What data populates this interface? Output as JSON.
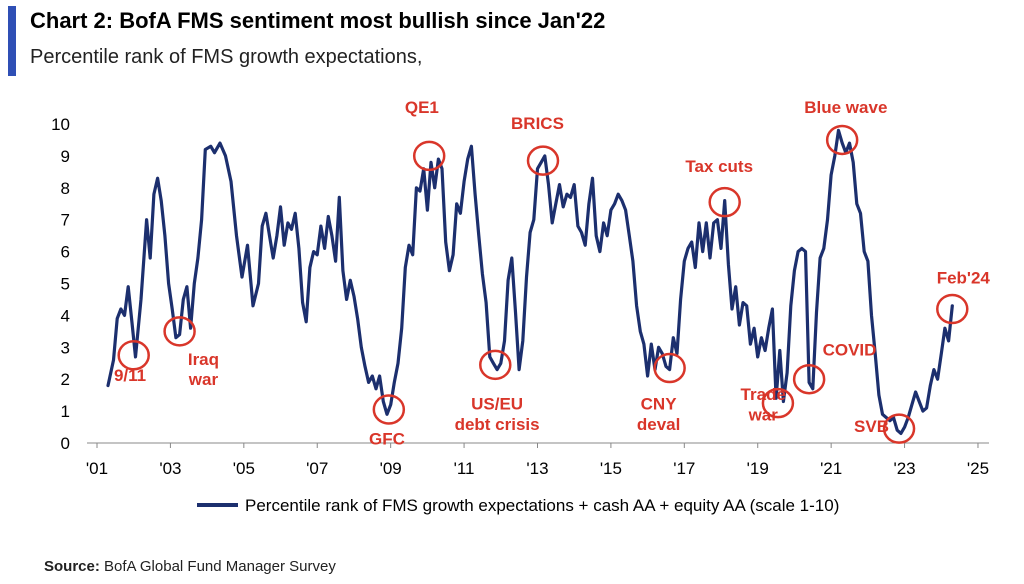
{
  "header": {
    "title": "Chart 2: BofA FMS sentiment most bullish since Jan'22",
    "subtitle": "Percentile rank of FMS growth expectations,"
  },
  "footer": {
    "source_label": "Source:",
    "source_text": "BofA Global Fund Manager Survey"
  },
  "colors": {
    "line": "#1c2f6e",
    "annotation": "#d9362a",
    "accent": "#2f4fb5"
  },
  "chart_data": {
    "type": "line",
    "title": "Chart 2: BofA FMS sentiment most bullish since Jan'22",
    "subtitle": "Percentile rank of FMS growth expectations,",
    "ylim": [
      0,
      10
    ],
    "yticks": [
      0,
      1,
      2,
      3,
      4,
      5,
      6,
      7,
      8,
      9,
      10
    ],
    "xlim": [
      2001,
      2025.6
    ],
    "xticks": [
      {
        "value": 2001,
        "label": "'01"
      },
      {
        "value": 2003,
        "label": "'03"
      },
      {
        "value": 2005,
        "label": "'05"
      },
      {
        "value": 2007,
        "label": "'07"
      },
      {
        "value": 2009,
        "label": "'09"
      },
      {
        "value": 2011,
        "label": "'11"
      },
      {
        "value": 2013,
        "label": "'13"
      },
      {
        "value": 2015,
        "label": "'15"
      },
      {
        "value": 2017,
        "label": "'17"
      },
      {
        "value": 2019,
        "label": "'19"
      },
      {
        "value": 2021,
        "label": "'21"
      },
      {
        "value": 2023,
        "label": "'23"
      },
      {
        "value": 2025,
        "label": "'25"
      }
    ],
    "grid": false,
    "legend_position": "bottom",
    "series": [
      {
        "name": "Percentile rank of FMS growth expectations + cash AA + equity AA (scale 1-10)",
        "points": [
          [
            2001.3,
            1.8
          ],
          [
            2001.45,
            2.6
          ],
          [
            2001.55,
            3.9
          ],
          [
            2001.65,
            4.2
          ],
          [
            2001.75,
            4.0
          ],
          [
            2001.85,
            4.9
          ],
          [
            2001.95,
            3.8
          ],
          [
            2002.05,
            2.7
          ],
          [
            2002.2,
            4.5
          ],
          [
            2002.35,
            7.0
          ],
          [
            2002.45,
            5.8
          ],
          [
            2002.55,
            7.8
          ],
          [
            2002.65,
            8.3
          ],
          [
            2002.75,
            7.6
          ],
          [
            2002.85,
            6.5
          ],
          [
            2002.95,
            5.0
          ],
          [
            2003.05,
            4.2
          ],
          [
            2003.15,
            3.3
          ],
          [
            2003.25,
            3.4
          ],
          [
            2003.35,
            4.5
          ],
          [
            2003.45,
            4.9
          ],
          [
            2003.55,
            3.6
          ],
          [
            2003.65,
            5.0
          ],
          [
            2003.75,
            5.8
          ],
          [
            2003.85,
            7.0
          ],
          [
            2003.95,
            9.2
          ],
          [
            2004.1,
            9.3
          ],
          [
            2004.2,
            9.1
          ],
          [
            2004.35,
            9.4
          ],
          [
            2004.5,
            9.0
          ],
          [
            2004.65,
            8.2
          ],
          [
            2004.8,
            6.5
          ],
          [
            2004.95,
            5.2
          ],
          [
            2005.1,
            6.2
          ],
          [
            2005.25,
            4.3
          ],
          [
            2005.4,
            5.0
          ],
          [
            2005.5,
            6.8
          ],
          [
            2005.6,
            7.2
          ],
          [
            2005.7,
            6.5
          ],
          [
            2005.8,
            5.8
          ],
          [
            2005.9,
            6.5
          ],
          [
            2006.0,
            7.4
          ],
          [
            2006.1,
            6.2
          ],
          [
            2006.2,
            6.9
          ],
          [
            2006.3,
            6.7
          ],
          [
            2006.4,
            7.2
          ],
          [
            2006.5,
            6.1
          ],
          [
            2006.6,
            4.4
          ],
          [
            2006.7,
            3.8
          ],
          [
            2006.8,
            5.5
          ],
          [
            2006.9,
            6.0
          ],
          [
            2007.0,
            5.9
          ],
          [
            2007.1,
            6.8
          ],
          [
            2007.2,
            6.1
          ],
          [
            2007.3,
            7.1
          ],
          [
            2007.4,
            6.5
          ],
          [
            2007.5,
            5.7
          ],
          [
            2007.6,
            7.7
          ],
          [
            2007.7,
            5.4
          ],
          [
            2007.8,
            4.5
          ],
          [
            2007.9,
            5.1
          ],
          [
            2008.0,
            4.6
          ],
          [
            2008.1,
            3.9
          ],
          [
            2008.2,
            3.0
          ],
          [
            2008.3,
            2.4
          ],
          [
            2008.4,
            1.9
          ],
          [
            2008.5,
            2.1
          ],
          [
            2008.6,
            1.7
          ],
          [
            2008.7,
            2.1
          ],
          [
            2008.8,
            1.3
          ],
          [
            2008.9,
            0.9
          ],
          [
            2009.0,
            1.2
          ],
          [
            2009.1,
            1.9
          ],
          [
            2009.2,
            2.5
          ],
          [
            2009.3,
            3.6
          ],
          [
            2009.4,
            5.5
          ],
          [
            2009.5,
            6.2
          ],
          [
            2009.6,
            5.9
          ],
          [
            2009.7,
            8.0
          ],
          [
            2009.8,
            7.9
          ],
          [
            2009.9,
            8.6
          ],
          [
            2010.0,
            7.3
          ],
          [
            2010.1,
            8.8
          ],
          [
            2010.2,
            8.0
          ],
          [
            2010.3,
            8.9
          ],
          [
            2010.4,
            8.6
          ],
          [
            2010.5,
            6.3
          ],
          [
            2010.6,
            5.4
          ],
          [
            2010.7,
            5.9
          ],
          [
            2010.8,
            7.5
          ],
          [
            2010.9,
            7.2
          ],
          [
            2011.0,
            8.2
          ],
          [
            2011.1,
            8.9
          ],
          [
            2011.2,
            9.3
          ],
          [
            2011.3,
            7.8
          ],
          [
            2011.4,
            6.5
          ],
          [
            2011.5,
            5.3
          ],
          [
            2011.6,
            4.4
          ],
          [
            2011.7,
            2.7
          ],
          [
            2011.8,
            2.5
          ],
          [
            2011.9,
            2.3
          ],
          [
            2012.0,
            2.5
          ],
          [
            2012.1,
            3.2
          ],
          [
            2012.2,
            5.1
          ],
          [
            2012.3,
            5.8
          ],
          [
            2012.4,
            4.1
          ],
          [
            2012.5,
            2.3
          ],
          [
            2012.6,
            3.2
          ],
          [
            2012.7,
            5.2
          ],
          [
            2012.8,
            6.6
          ],
          [
            2012.9,
            7.0
          ],
          [
            2013.0,
            8.6
          ],
          [
            2013.1,
            8.8
          ],
          [
            2013.2,
            9.0
          ],
          [
            2013.3,
            8.1
          ],
          [
            2013.4,
            6.9
          ],
          [
            2013.5,
            7.5
          ],
          [
            2013.6,
            8.1
          ],
          [
            2013.7,
            7.4
          ],
          [
            2013.8,
            7.8
          ],
          [
            2013.9,
            7.7
          ],
          [
            2014.0,
            8.1
          ],
          [
            2014.1,
            6.8
          ],
          [
            2014.2,
            6.6
          ],
          [
            2014.3,
            6.2
          ],
          [
            2014.4,
            7.5
          ],
          [
            2014.5,
            8.3
          ],
          [
            2014.6,
            6.5
          ],
          [
            2014.7,
            6.0
          ],
          [
            2014.8,
            6.9
          ],
          [
            2014.9,
            6.5
          ],
          [
            2015.0,
            7.3
          ],
          [
            2015.1,
            7.5
          ],
          [
            2015.2,
            7.8
          ],
          [
            2015.3,
            7.6
          ],
          [
            2015.4,
            7.3
          ],
          [
            2015.5,
            6.5
          ],
          [
            2015.6,
            5.7
          ],
          [
            2015.7,
            4.3
          ],
          [
            2015.8,
            3.5
          ],
          [
            2015.9,
            3.1
          ],
          [
            2016.0,
            2.1
          ],
          [
            2016.1,
            3.1
          ],
          [
            2016.2,
            2.3
          ],
          [
            2016.3,
            3.0
          ],
          [
            2016.4,
            2.8
          ],
          [
            2016.5,
            2.4
          ],
          [
            2016.6,
            2.3
          ],
          [
            2016.7,
            3.3
          ],
          [
            2016.8,
            2.8
          ],
          [
            2016.9,
            4.5
          ],
          [
            2017.0,
            5.7
          ],
          [
            2017.1,
            6.1
          ],
          [
            2017.2,
            6.3
          ],
          [
            2017.3,
            5.5
          ],
          [
            2017.4,
            6.9
          ],
          [
            2017.5,
            6.0
          ],
          [
            2017.6,
            6.9
          ],
          [
            2017.7,
            5.8
          ],
          [
            2017.8,
            6.9
          ],
          [
            2017.9,
            7.0
          ],
          [
            2018.0,
            6.1
          ],
          [
            2018.1,
            7.6
          ],
          [
            2018.2,
            5.6
          ],
          [
            2018.3,
            4.2
          ],
          [
            2018.4,
            4.9
          ],
          [
            2018.5,
            3.7
          ],
          [
            2018.6,
            4.4
          ],
          [
            2018.7,
            4.3
          ],
          [
            2018.8,
            3.1
          ],
          [
            2018.9,
            3.6
          ],
          [
            2019.0,
            2.7
          ],
          [
            2019.1,
            3.3
          ],
          [
            2019.2,
            2.9
          ],
          [
            2019.3,
            3.6
          ],
          [
            2019.4,
            4.2
          ],
          [
            2019.5,
            1.4
          ],
          [
            2019.6,
            2.9
          ],
          [
            2019.7,
            1.3
          ],
          [
            2019.8,
            2.2
          ],
          [
            2019.9,
            4.3
          ],
          [
            2020.0,
            5.4
          ],
          [
            2020.1,
            6.0
          ],
          [
            2020.2,
            6.1
          ],
          [
            2020.3,
            6.0
          ],
          [
            2020.4,
            1.9
          ],
          [
            2020.5,
            1.7
          ],
          [
            2020.6,
            4.1
          ],
          [
            2020.7,
            5.8
          ],
          [
            2020.8,
            6.1
          ],
          [
            2020.9,
            7.0
          ],
          [
            2021.0,
            8.4
          ],
          [
            2021.1,
            9.0
          ],
          [
            2021.2,
            9.8
          ],
          [
            2021.3,
            9.4
          ],
          [
            2021.4,
            9.1
          ],
          [
            2021.5,
            9.4
          ],
          [
            2021.6,
            8.8
          ],
          [
            2021.7,
            7.5
          ],
          [
            2021.8,
            7.2
          ],
          [
            2021.9,
            6.0
          ],
          [
            2022.0,
            5.7
          ],
          [
            2022.1,
            4.0
          ],
          [
            2022.2,
            2.8
          ],
          [
            2022.3,
            1.5
          ],
          [
            2022.4,
            0.9
          ],
          [
            2022.5,
            0.8
          ],
          [
            2022.6,
            0.7
          ],
          [
            2022.7,
            0.8
          ],
          [
            2022.8,
            0.4
          ],
          [
            2022.9,
            0.3
          ],
          [
            2023.0,
            0.5
          ],
          [
            2023.1,
            0.8
          ],
          [
            2023.2,
            1.2
          ],
          [
            2023.3,
            1.6
          ],
          [
            2023.4,
            1.3
          ],
          [
            2023.5,
            1.0
          ],
          [
            2023.6,
            1.1
          ],
          [
            2023.7,
            1.8
          ],
          [
            2023.8,
            2.3
          ],
          [
            2023.9,
            2.0
          ],
          [
            2024.0,
            2.8
          ],
          [
            2024.1,
            3.6
          ],
          [
            2024.2,
            3.2
          ],
          [
            2024.3,
            4.3
          ]
        ]
      }
    ],
    "annotations": [
      {
        "label": "9/11",
        "x": 2002.0,
        "y": 2.75,
        "lines": [
          "9/11"
        ],
        "text_x": 2001.9,
        "text_y": 1.95
      },
      {
        "label": "Iraq war",
        "x": 2003.25,
        "y": 3.5,
        "lines": [
          "Iraq",
          "war"
        ],
        "text_x": 2003.9,
        "text_y": 2.45
      },
      {
        "label": "GFC",
        "x": 2008.95,
        "y": 1.05,
        "lines": [
          "GFC"
        ],
        "text_x": 2008.9,
        "text_y": -0.05
      },
      {
        "label": "QE1",
        "x": 2010.05,
        "y": 9.0,
        "lines": [
          "QE1"
        ],
        "text_x": 2009.85,
        "text_y": 10.35
      },
      {
        "label": "US/EU debt crisis",
        "x": 2011.85,
        "y": 2.45,
        "lines": [
          "US/EU",
          "debt crisis"
        ],
        "text_x": 2011.9,
        "text_y": 1.05
      },
      {
        "label": "BRICS",
        "x": 2013.15,
        "y": 8.85,
        "lines": [
          "BRICS"
        ],
        "text_x": 2013.0,
        "text_y": 9.85
      },
      {
        "label": "CNY deval",
        "x": 2016.6,
        "y": 2.35,
        "lines": [
          "CNY",
          "deval"
        ],
        "text_x": 2016.3,
        "text_y": 1.05
      },
      {
        "label": "Tax cuts",
        "x": 2018.1,
        "y": 7.55,
        "lines": [
          "Tax cuts"
        ],
        "text_x": 2017.95,
        "text_y": 8.5
      },
      {
        "label": "Trade war",
        "x": 2019.55,
        "y": 1.25,
        "lines": [
          "Trade",
          "war"
        ],
        "text_x": 2019.15,
        "text_y": 1.35
      },
      {
        "label": "COVID",
        "x": 2020.4,
        "y": 2.0,
        "lines": [
          "COVID"
        ],
        "text_x": 2021.5,
        "text_y": 2.75
      },
      {
        "label": "Blue wave",
        "x": 2021.3,
        "y": 9.5,
        "lines": [
          "Blue wave"
        ],
        "text_x": 2021.4,
        "text_y": 10.35
      },
      {
        "label": "SVB",
        "x": 2022.85,
        "y": 0.45,
        "lines": [
          "SVB"
        ],
        "text_x": 2022.1,
        "text_y": 0.35
      },
      {
        "label": "Feb'24",
        "x": 2024.3,
        "y": 4.2,
        "lines": [
          "Feb'24"
        ],
        "text_x": 2024.6,
        "text_y": 5.0
      }
    ]
  }
}
